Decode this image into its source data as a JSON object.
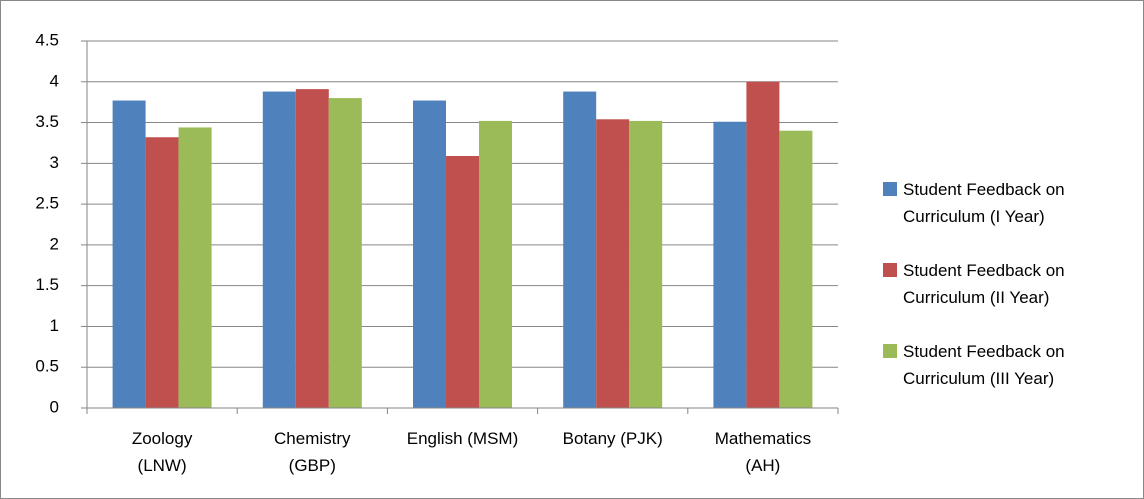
{
  "chart_data": {
    "type": "bar",
    "categories": [
      "Zoology (LNW)",
      "Chemistry (GBP)",
      "English (MSM)",
      "Botany (PJK)",
      "Mathematics (AH)"
    ],
    "series": [
      {
        "name": "Student Feedback on Curriculum  (I Year)",
        "color": "#4f81bd",
        "values": [
          3.77,
          3.88,
          3.77,
          3.88,
          3.51
        ]
      },
      {
        "name": "Student Feedback on Curriculum (II Year)",
        "color": "#c0504d",
        "values": [
          3.32,
          3.91,
          3.09,
          3.54,
          4.0
        ]
      },
      {
        "name": "Student Feedback on Curriculum (III Year)",
        "color": "#9bbb59",
        "values": [
          3.44,
          3.8,
          3.52,
          3.52,
          3.4
        ]
      }
    ],
    "ylim": [
      0,
      4.5
    ],
    "yticks": [
      0,
      0.5,
      1,
      1.5,
      2,
      2.5,
      3,
      3.5,
      4,
      4.5
    ],
    "grid": true,
    "legend": "right"
  }
}
